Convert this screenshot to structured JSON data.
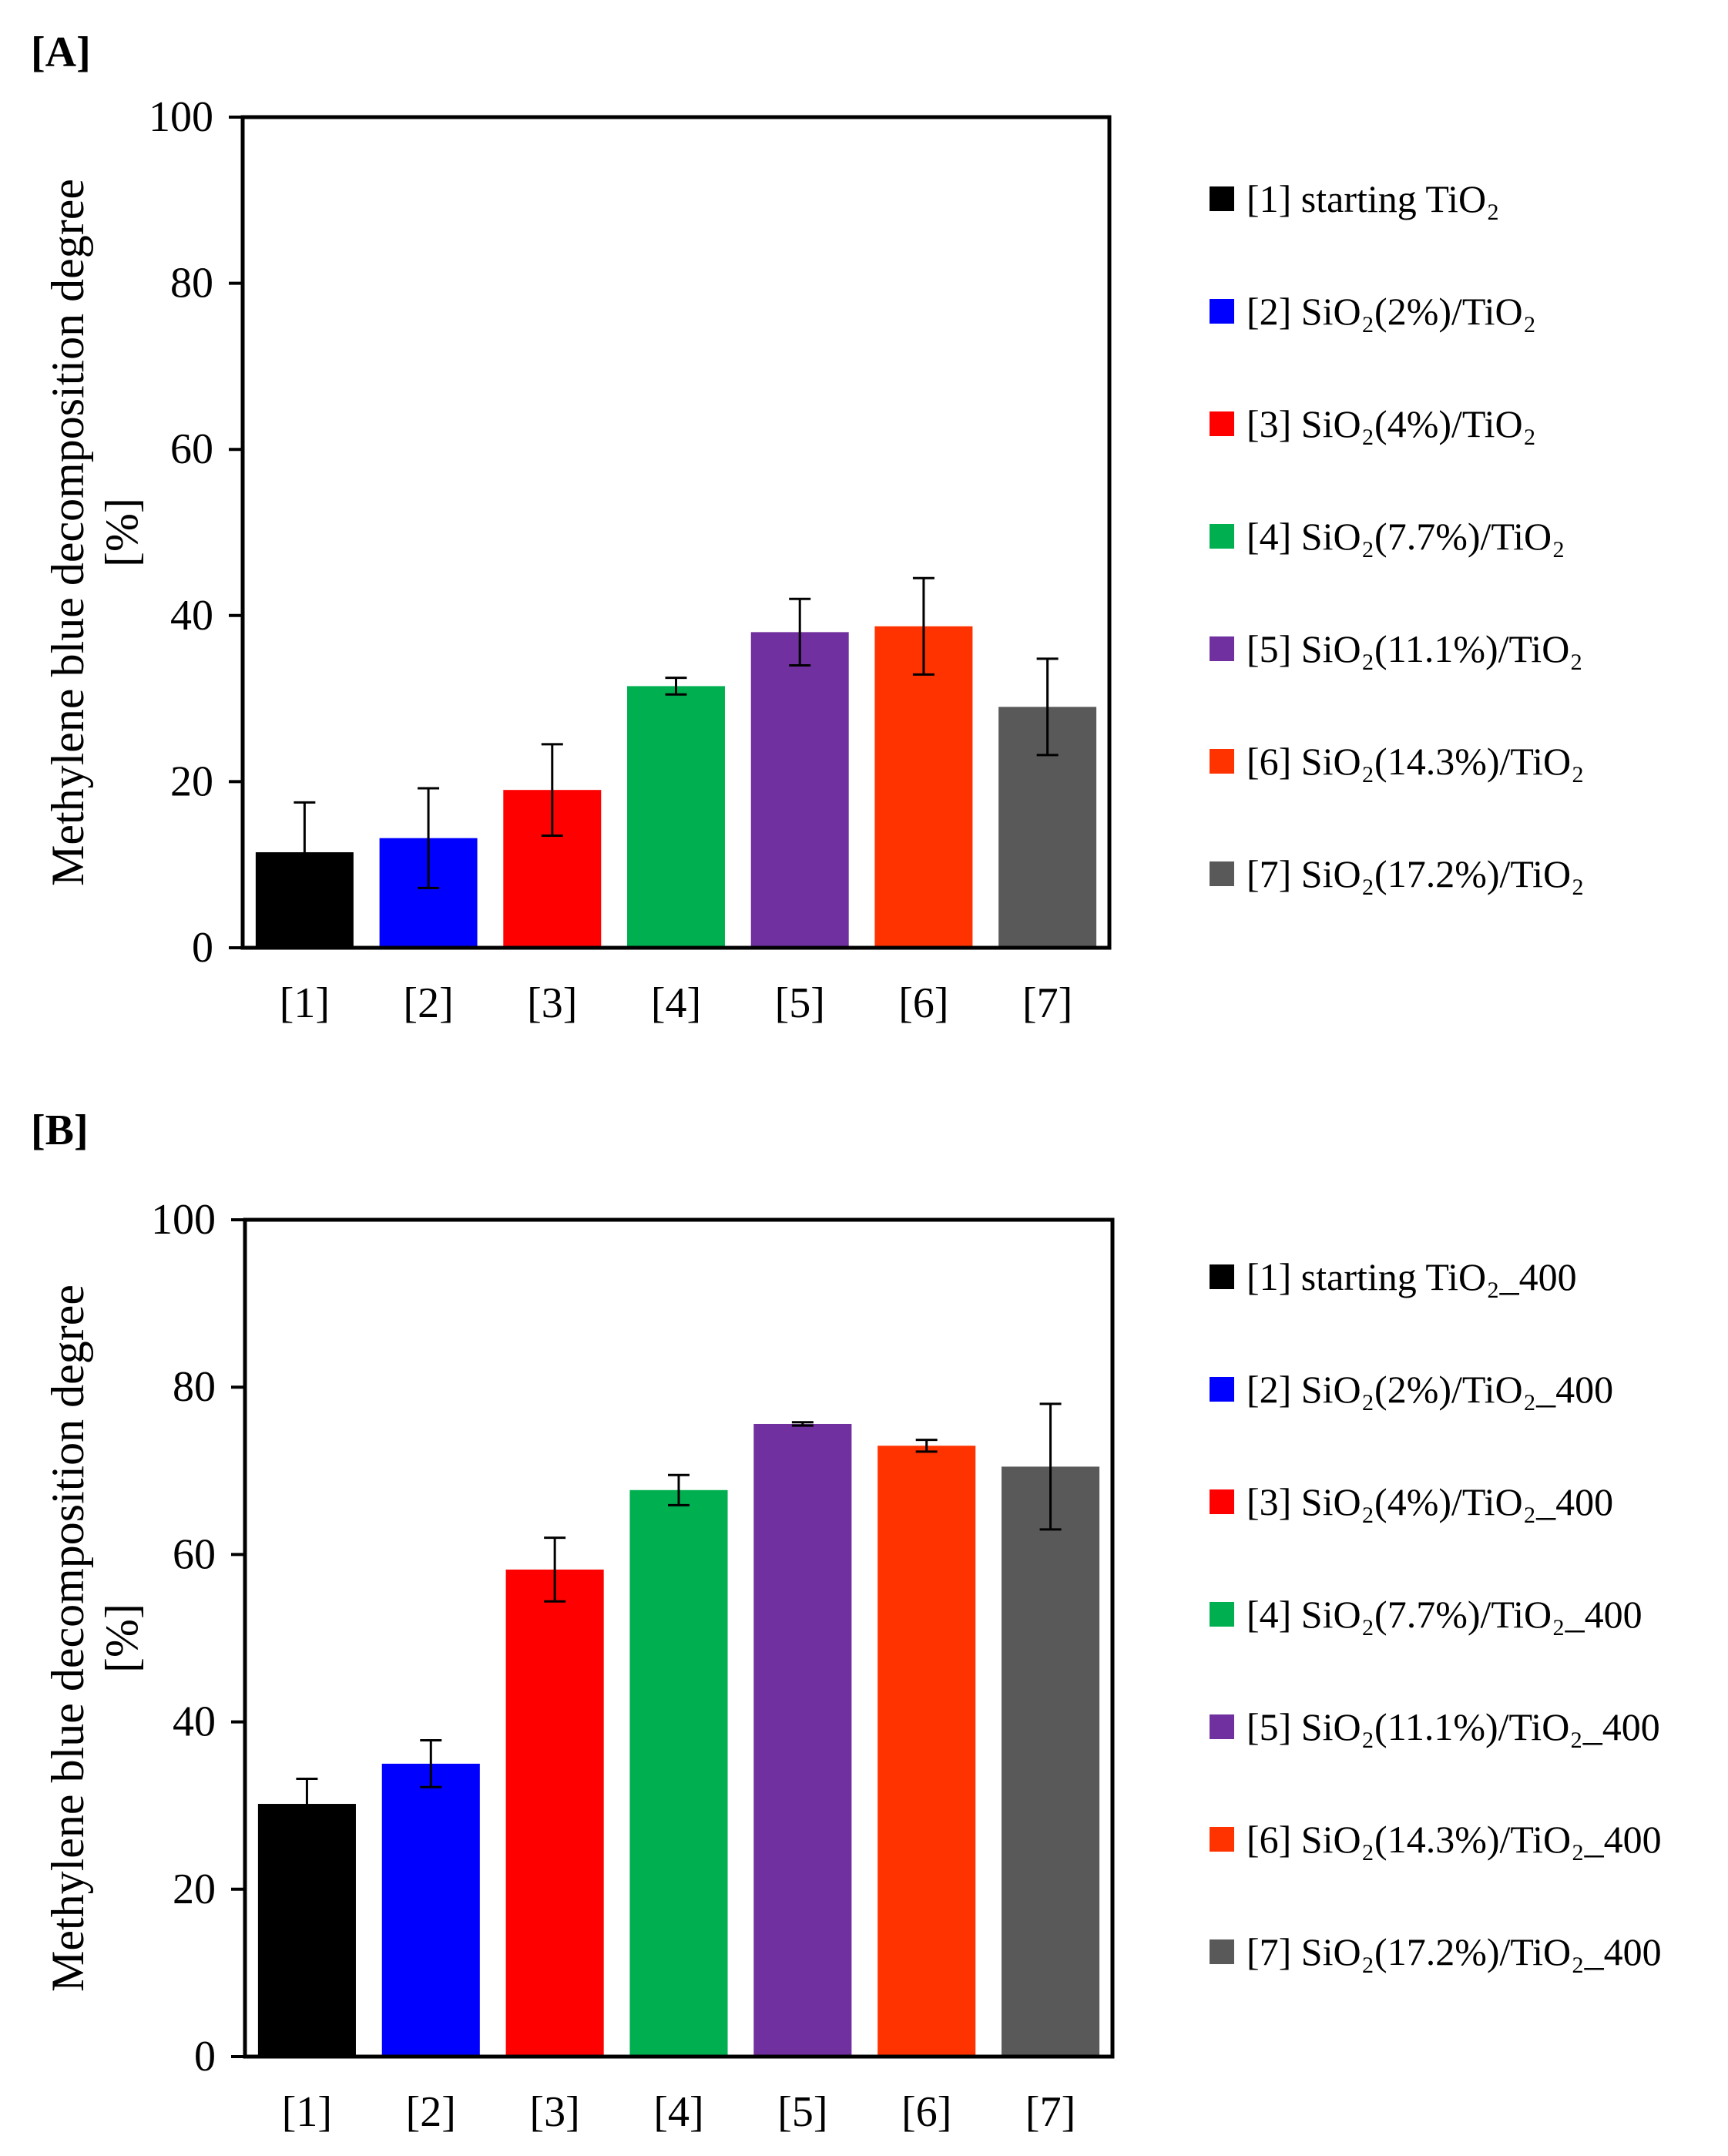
{
  "chart_data": [
    {
      "type": "bar",
      "panel_label": "[A]",
      "title": "",
      "xlabel": "",
      "ylabel": "Methylene blue decomposition degree",
      "ylabel_unit": "[%]",
      "ylim": [
        0,
        100
      ],
      "yticks": [
        0,
        20,
        40,
        60,
        80,
        100
      ],
      "categories": [
        "[1]",
        "[2]",
        "[3]",
        "[4]",
        "[5]",
        "[6]",
        "[7]"
      ],
      "values": [
        11.5,
        13.2,
        19.0,
        31.5,
        38.0,
        38.7,
        29.0
      ],
      "errors": [
        6.0,
        6.0,
        5.5,
        1.0,
        4.0,
        5.8,
        5.8
      ],
      "colors": [
        "#000000",
        "#0000ff",
        "#ff0000",
        "#00b050",
        "#7030a0",
        "#ff3300",
        "#595959"
      ],
      "legend": [
        "[1] starting TiO₂",
        "[2] SiO₂(2%)/TiO₂",
        "[3] SiO₂(4%)/TiO₂",
        "[4] SiO₂(7.7%)/TiO₂",
        "[5] SiO₂(11.1%)/TiO₂",
        "[6] SiO₂(14.3%)/TiO₂",
        "[7] SiO₂(17.2%)/TiO₂"
      ],
      "legend_position": "right",
      "grid": false
    },
    {
      "type": "bar",
      "panel_label": "[B]",
      "title": "",
      "xlabel": "",
      "ylabel": "Methylene blue decomposition degree",
      "ylabel_unit": "[%]",
      "ylim": [
        0,
        100
      ],
      "yticks": [
        0,
        20,
        40,
        60,
        80,
        100
      ],
      "categories": [
        "[1]",
        "[2]",
        "[3]",
        "[4]",
        "[5]",
        "[6]",
        "[7]"
      ],
      "values": [
        30.2,
        35.0,
        58.2,
        67.7,
        75.6,
        73.0,
        70.5
      ],
      "errors": [
        3.0,
        2.8,
        3.8,
        1.8,
        0.2,
        0.7,
        7.5
      ],
      "colors": [
        "#000000",
        "#0000ff",
        "#ff0000",
        "#00b050",
        "#7030a0",
        "#ff3300",
        "#595959"
      ],
      "legend": [
        "[1] starting TiO₂_400",
        "[2] SiO₂(2%)/TiO₂_400",
        "[3] SiO₂(4%)/TiO₂_400",
        "[4] SiO₂(7.7%)/TiO₂_400",
        "[5] SiO₂(11.1%)/TiO₂_400",
        "[6] SiO₂(14.3%)/TiO₂_400",
        "[7] SiO₂(17.2%)/TiO₂_400"
      ],
      "legend_position": "right",
      "grid": false
    }
  ]
}
